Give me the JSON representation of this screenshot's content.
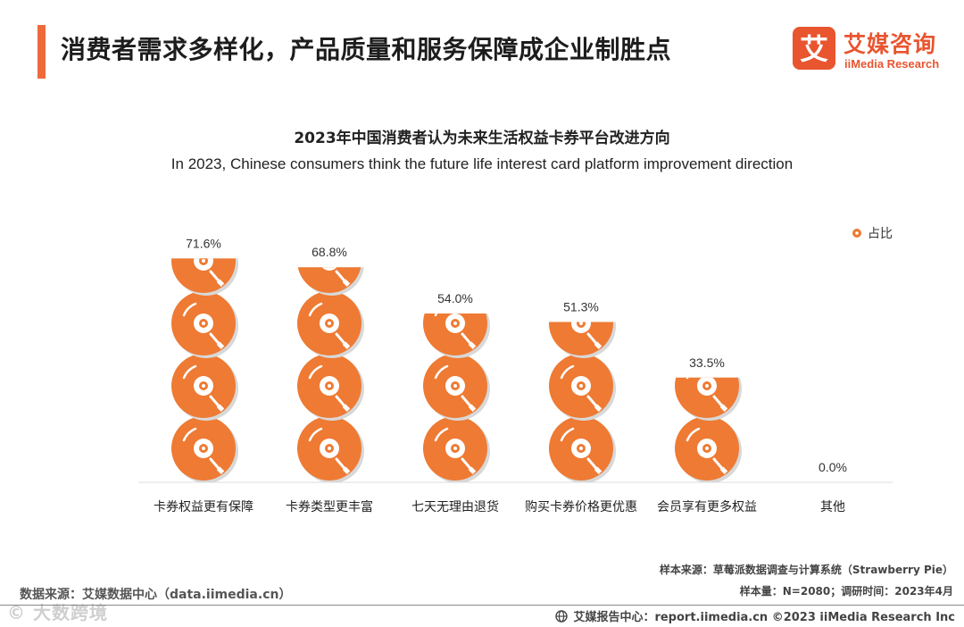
{
  "header": {
    "title": "消费者需求多样化，产品质量和服务保障成企业制胜点"
  },
  "logo": {
    "mark_glyph": "艾",
    "cn": "艾媒咨询",
    "en": "iiMedia Research"
  },
  "chart_data": {
    "type": "bar",
    "title": "2023年中国消费者认为未来生活权益卡券平台改进方向",
    "subtitle": "In 2023, Chinese consumers think the future life interest card platform improvement direction",
    "categories": [
      "卡券权益更有保障",
      "卡券类型更丰富",
      "七天无理由退货",
      "购买卡券价格更优惠",
      "会员享有更多权益",
      "其他"
    ],
    "series": [
      {
        "name": "占比",
        "values": [
          71.6,
          68.8,
          54.0,
          51.3,
          33.5,
          0.0
        ]
      }
    ],
    "data_labels": [
      "71.6%",
      "68.8%",
      "54.0%",
      "51.3%",
      "33.5%",
      "0.0%"
    ],
    "legend_position": "top-right",
    "ylim": [
      0,
      80
    ],
    "grid": false,
    "color": "#ee7a33"
  },
  "notes": {
    "sample_source": "样本来源：草莓派数据调查与计算系统（Strawberry Pie）",
    "sample_size": "样本量：N=2080；调研时间：2023年4月"
  },
  "source": "数据来源：艾媒数据中心（data.iimedia.cn）",
  "watermark": "© 大数跨境",
  "footer": {
    "text": "艾媒报告中心：report.iimedia.cn   ©2023  iiMedia Research  Inc"
  },
  "colors": {
    "accent": "#ee6a3a",
    "brand": "#e8552f",
    "bar": "#ee7a33"
  }
}
